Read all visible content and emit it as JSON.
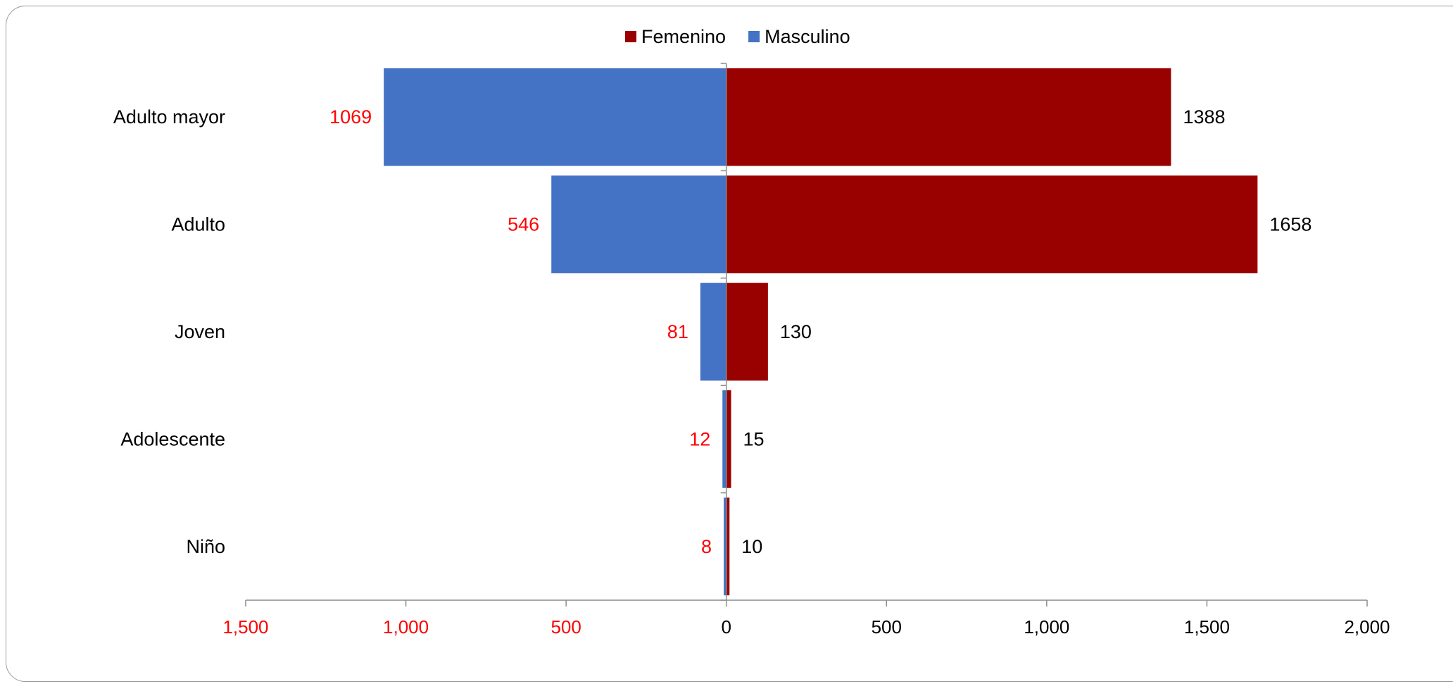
{
  "chart_data": {
    "type": "bar",
    "orientation": "horizontal",
    "layout": "population-pyramid",
    "title": "",
    "xlabel": "",
    "ylabel": "",
    "categories": [
      "Adulto mayor",
      "Adulto",
      "Joven",
      "Adolescente",
      "Niño"
    ],
    "series": [
      {
        "name": "Femenino",
        "values": [
          1388,
          1658,
          130,
          15,
          10
        ],
        "color": "#990000",
        "label_color": "#000000",
        "direction": "right"
      },
      {
        "name": "Masculino",
        "values": [
          1069,
          546,
          81,
          12,
          8
        ],
        "color": "#4472C4",
        "label_color": "#FF0000",
        "direction": "left"
      }
    ],
    "xlim": [
      -1500,
      2000
    ],
    "ticks": [
      {
        "value": -1500,
        "label": "1,500",
        "color": "#FF0000"
      },
      {
        "value": -1000,
        "label": "1,000",
        "color": "#FF0000"
      },
      {
        "value": -500,
        "label": "500",
        "color": "#FF0000"
      },
      {
        "value": 0,
        "label": "0",
        "color": "#000000"
      },
      {
        "value": 500,
        "label": "500",
        "color": "#000000"
      },
      {
        "value": 1000,
        "label": "1,000",
        "color": "#000000"
      },
      {
        "value": 1500,
        "label": "1,500",
        "color": "#000000"
      },
      {
        "value": 2000,
        "label": "2,000",
        "color": "#000000"
      }
    ],
    "legend_position": "top-center",
    "grid": false
  }
}
